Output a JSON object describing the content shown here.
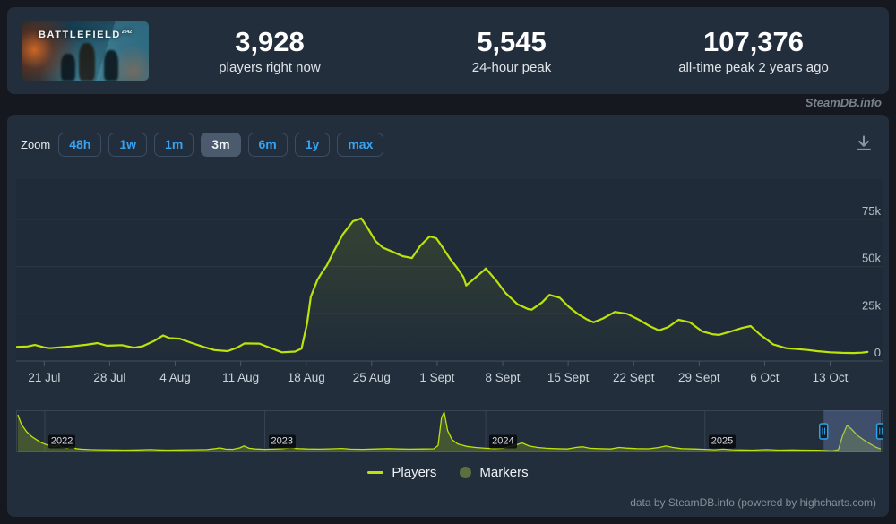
{
  "header": {
    "game_logo": "BATTLEFIELD",
    "game_logo_suffix": "2042",
    "stats": [
      {
        "value": "3,928",
        "label": "players right now"
      },
      {
        "value": "5,545",
        "label": "24-hour peak"
      },
      {
        "value": "107,376",
        "label": "all-time peak 2 years ago"
      }
    ]
  },
  "watermark": "SteamDB.info",
  "toolbar": {
    "zoom_label": "Zoom",
    "ranges": [
      "48h",
      "1w",
      "1m",
      "3m",
      "6m",
      "1y",
      "max"
    ],
    "selected": "3m"
  },
  "legend": {
    "items": [
      {
        "label": "Players",
        "marker": "line"
      },
      {
        "label": "Markers",
        "marker": "circle"
      }
    ]
  },
  "footer_credit": "data by SteamDB.info (powered by highcharts.com)",
  "colors": {
    "line": "#bce30a",
    "area_fill": "rgba(188,227,10,0.13)",
    "nav_fill": "rgba(188,227,10,0.22)",
    "grid": "#2d3845",
    "axis": "#41505f",
    "tick": "#4a5766",
    "x_label": "#ccd3da",
    "y_label": "#b9c2cb",
    "marker_dot": "#5d6f3c",
    "selection_mask": "rgba(124,146,205,0.32)",
    "handle_stroke": "#2ba3e8",
    "handle_fill": "#141e28",
    "nav_border": "#39434f"
  },
  "chart_data": {
    "type": "line",
    "series": [
      {
        "name": "Players",
        "unit": "thousands of concurrent players",
        "x_unit": "days since 18 Jul",
        "points": [
          [
            0.1,
            7.5
          ],
          [
            1.2,
            7.7
          ],
          [
            2.0,
            8.5
          ],
          [
            3.0,
            7.2
          ],
          [
            3.6,
            6.8
          ],
          [
            5.8,
            7.7
          ],
          [
            7.5,
            8.6
          ],
          [
            8.7,
            9.5
          ],
          [
            9.7,
            8.1
          ],
          [
            11.3,
            8.4
          ],
          [
            12.6,
            7.0
          ],
          [
            13.5,
            7.8
          ],
          [
            14.7,
            10.5
          ],
          [
            15.7,
            13.5
          ],
          [
            16.4,
            12.1
          ],
          [
            17.5,
            11.8
          ],
          [
            18.8,
            9.5
          ],
          [
            20.0,
            7.5
          ],
          [
            21.2,
            5.8
          ],
          [
            22.6,
            5.2
          ],
          [
            23.6,
            7.0
          ],
          [
            24.4,
            9.3
          ],
          [
            26.0,
            9.2
          ],
          [
            27.2,
            6.9
          ],
          [
            28.4,
            4.6
          ],
          [
            29.8,
            5.0
          ],
          [
            30.5,
            6.5
          ],
          [
            31.1,
            20
          ],
          [
            31.5,
            34
          ],
          [
            32.2,
            43
          ],
          [
            32.7,
            47
          ],
          [
            33.2,
            50.5
          ],
          [
            33.9,
            57.5
          ],
          [
            34.9,
            67
          ],
          [
            36.0,
            74
          ],
          [
            36.9,
            75.5
          ],
          [
            37.5,
            71
          ],
          [
            38.4,
            63.5
          ],
          [
            39.2,
            60
          ],
          [
            40.4,
            57.5
          ],
          [
            41.3,
            55.5
          ],
          [
            42.3,
            54.5
          ],
          [
            43.2,
            61
          ],
          [
            44.2,
            66
          ],
          [
            44.9,
            65
          ],
          [
            45.4,
            61.5
          ],
          [
            46.4,
            54
          ],
          [
            47.1,
            49.5
          ],
          [
            47.8,
            44.5
          ],
          [
            48.1,
            40
          ],
          [
            48.8,
            43
          ],
          [
            50.0,
            48
          ],
          [
            50.2,
            49
          ],
          [
            51.4,
            42
          ],
          [
            52.3,
            36
          ],
          [
            53.6,
            30
          ],
          [
            54.7,
            27.5
          ],
          [
            55.1,
            27.2
          ],
          [
            56.2,
            31
          ],
          [
            57.0,
            35
          ],
          [
            58.1,
            33.5
          ],
          [
            59.1,
            28.5
          ],
          [
            60.0,
            25
          ],
          [
            61.0,
            22
          ],
          [
            61.7,
            20.5
          ],
          [
            62.7,
            22.5
          ],
          [
            64.0,
            26
          ],
          [
            65.3,
            25
          ],
          [
            66.5,
            22
          ],
          [
            67.7,
            18.5
          ],
          [
            68.7,
            16.2
          ],
          [
            69.7,
            18
          ],
          [
            70.8,
            21.8
          ],
          [
            72.0,
            20.5
          ],
          [
            73.3,
            15.7
          ],
          [
            74.4,
            14.2
          ],
          [
            75.1,
            13.8
          ],
          [
            76.3,
            15.5
          ],
          [
            77.6,
            17.5
          ],
          [
            78.5,
            18.5
          ],
          [
            79.5,
            14
          ],
          [
            80.2,
            11.5
          ],
          [
            80.9,
            8.8
          ],
          [
            82.3,
            6.8
          ],
          [
            83.5,
            6.3
          ],
          [
            84.7,
            5.8
          ],
          [
            85.6,
            5.2
          ],
          [
            87.0,
            4.6
          ],
          [
            88.3,
            4.3
          ],
          [
            89.5,
            4.2
          ],
          [
            90.4,
            4.4
          ],
          [
            91.0,
            4.8
          ]
        ]
      }
    ],
    "x_ticks": [
      {
        "day": 3,
        "label": "21 Jul"
      },
      {
        "day": 10,
        "label": "28 Jul"
      },
      {
        "day": 17,
        "label": "4 Aug"
      },
      {
        "day": 24,
        "label": "11 Aug"
      },
      {
        "day": 31,
        "label": "18 Aug"
      },
      {
        "day": 38,
        "label": "25 Aug"
      },
      {
        "day": 45,
        "label": "1 Sept"
      },
      {
        "day": 52,
        "label": "8 Sept"
      },
      {
        "day": 59,
        "label": "15 Sept"
      },
      {
        "day": 66,
        "label": "22 Sept"
      },
      {
        "day": 73,
        "label": "29 Sept"
      },
      {
        "day": 80,
        "label": "6 Oct"
      },
      {
        "day": 87,
        "label": "13 Oct"
      }
    ],
    "y_ticks": [
      {
        "value": 0,
        "label": "0"
      },
      {
        "value": 25,
        "label": "25k"
      },
      {
        "value": 50,
        "label": "50k"
      },
      {
        "value": 75,
        "label": "75k"
      }
    ],
    "x_range_days": 92.6,
    "y_max_k": 96.3,
    "grid": true,
    "legend_position": "bottom-center",
    "y_axis_side": "right",
    "navigator": {
      "y_max_k": 112,
      "years": [
        {
          "pct": 3.3,
          "label": "2022"
        },
        {
          "pct": 28.7,
          "label": "2023"
        },
        {
          "pct": 54.2,
          "label": "2024"
        },
        {
          "pct": 79.5,
          "label": "2025"
        }
      ],
      "selection": {
        "from_pct": 93.2,
        "to_pct": 99.8
      },
      "points": [
        [
          0.2,
          100
        ],
        [
          0.6,
          75
        ],
        [
          1.2,
          55
        ],
        [
          1.8,
          42
        ],
        [
          2.4,
          33
        ],
        [
          2.8,
          27
        ],
        [
          3.3,
          22
        ],
        [
          3.9,
          18
        ],
        [
          4.4,
          15
        ],
        [
          4.9,
          20
        ],
        [
          5.3,
          13
        ],
        [
          5.9,
          11
        ],
        [
          6.4,
          16
        ],
        [
          6.9,
          10
        ],
        [
          7.5,
          8.5
        ],
        [
          8.5,
          7.5
        ],
        [
          9.5,
          7
        ],
        [
          11,
          6.5
        ],
        [
          12.5,
          6
        ],
        [
          14,
          6.5
        ],
        [
          15.5,
          7.5
        ],
        [
          16.5,
          6.5
        ],
        [
          17.5,
          6
        ],
        [
          19,
          6.5
        ],
        [
          20.5,
          7
        ],
        [
          22,
          7.5
        ],
        [
          23,
          10
        ],
        [
          23.5,
          12
        ],
        [
          24.2,
          8.5
        ],
        [
          25,
          8
        ],
        [
          25.8,
          12
        ],
        [
          26.3,
          17
        ],
        [
          26.9,
          11
        ],
        [
          27.6,
          9
        ],
        [
          28.7,
          8
        ],
        [
          29.6,
          8.5
        ],
        [
          30.6,
          9.5
        ],
        [
          31.6,
          12
        ],
        [
          32.6,
          10
        ],
        [
          33.6,
          9
        ],
        [
          35,
          8.5
        ],
        [
          36.5,
          9.5
        ],
        [
          37.6,
          10.5
        ],
        [
          38.6,
          8.5
        ],
        [
          40,
          8
        ],
        [
          41.5,
          9
        ],
        [
          43,
          10
        ],
        [
          44.2,
          9
        ],
        [
          45.5,
          8.5
        ],
        [
          47,
          9
        ],
        [
          48.2,
          9.5
        ],
        [
          48.7,
          18
        ],
        [
          49.1,
          93
        ],
        [
          49.4,
          107
        ],
        [
          49.8,
          58
        ],
        [
          50.3,
          34
        ],
        [
          51,
          22
        ],
        [
          52,
          16
        ],
        [
          53,
          13
        ],
        [
          54.2,
          11
        ],
        [
          55.2,
          10
        ],
        [
          56.2,
          11
        ],
        [
          57.6,
          19
        ],
        [
          58.4,
          25
        ],
        [
          59.2,
          17
        ],
        [
          60.2,
          13
        ],
        [
          61.2,
          11
        ],
        [
          62.2,
          10
        ],
        [
          63.6,
          9
        ],
        [
          64.6,
          13
        ],
        [
          65.4,
          15
        ],
        [
          66.2,
          11
        ],
        [
          67.2,
          10
        ],
        [
          68.6,
          9
        ],
        [
          69.6,
          13
        ],
        [
          70.4,
          11.5
        ],
        [
          71.6,
          10
        ],
        [
          73,
          9.5
        ],
        [
          74.2,
          13
        ],
        [
          75,
          17
        ],
        [
          75.8,
          13
        ],
        [
          76.8,
          10
        ],
        [
          78.2,
          9
        ],
        [
          79.5,
          8
        ],
        [
          80.6,
          7
        ],
        [
          81.6,
          8.5
        ],
        [
          82.6,
          7
        ],
        [
          83.6,
          6.5
        ],
        [
          85,
          6
        ],
        [
          86.6,
          7.5
        ],
        [
          88,
          6
        ],
        [
          89.6,
          6.5
        ],
        [
          91,
          6
        ],
        [
          92.6,
          5.5
        ],
        [
          93.4,
          5
        ],
        [
          94.2,
          4
        ],
        [
          94.9,
          7
        ],
        [
          95.4,
          45
        ],
        [
          95.9,
          72
        ],
        [
          96.4,
          62
        ],
        [
          97.1,
          45
        ],
        [
          97.9,
          32
        ],
        [
          98.6,
          22
        ],
        [
          99.2,
          14
        ],
        [
          99.8,
          9
        ]
      ]
    }
  }
}
